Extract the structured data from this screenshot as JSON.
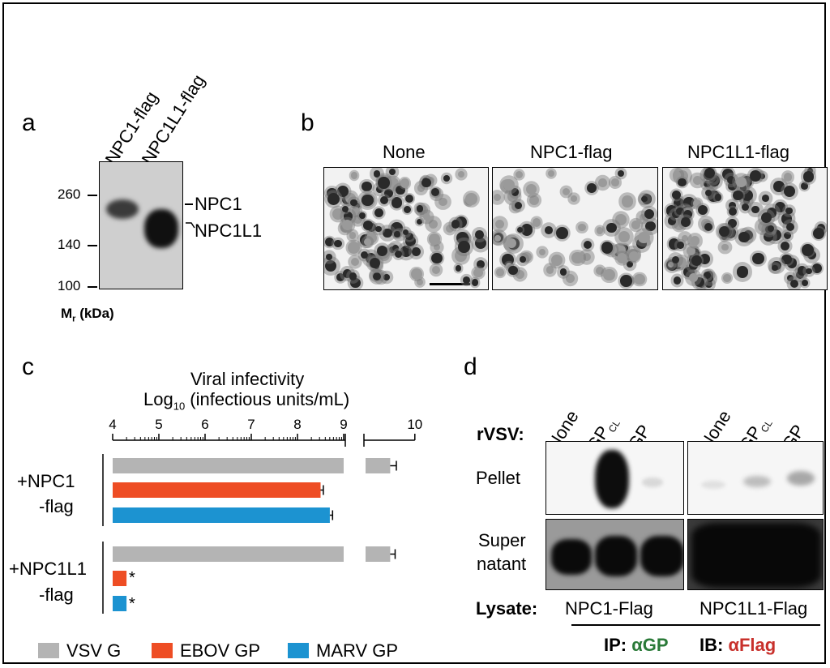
{
  "colors": {
    "vsv": "#b4b4b4",
    "ebov": "#ee4d24",
    "marv": "#1c93d1",
    "gp_green": "#2a7a38",
    "flag_red": "#c8302b"
  },
  "panel_a": {
    "label": "a",
    "lanes": [
      "NPC1-flag",
      "NPC1L1-flag"
    ],
    "markers": [
      "260",
      "140",
      "100"
    ],
    "band_labels": [
      "NPC1",
      "NPC1L1"
    ],
    "mr": "M",
    "mr_sub": "r",
    "mr_unit": "(kDa)"
  },
  "panel_b": {
    "label": "b",
    "conditions": [
      "None",
      "NPC1-flag",
      "NPC1L1-flag"
    ]
  },
  "panel_c": {
    "label": "c",
    "title_line1": "Viral infectivity",
    "title_log": "Log",
    "title_sub": "10",
    "title_units": " (infectious units/mL)",
    "group1": [
      "+NPC1",
      "-flag"
    ],
    "group2": [
      "+NPC1L1",
      "-flag"
    ],
    "asterisk": "*",
    "legend": [
      "VSV G",
      "EBOV GP",
      "MARV GP"
    ]
  },
  "chart_data": {
    "type": "bar",
    "orientation": "horizontal",
    "axis": {
      "ticks": [
        4,
        5,
        6,
        7,
        8,
        9,
        10
      ],
      "range": [
        4,
        10
      ],
      "scale": "log10 values, axis break between 9 and 9.2"
    },
    "groups": [
      "+NPC1 -flag",
      "+NPC1L1 -flag"
    ],
    "series": [
      {
        "name": "VSV G",
        "values": [
          9.6,
          9.6
        ],
        "errors": [
          0.1,
          0.08
        ]
      },
      {
        "name": "EBOV GP",
        "values": [
          8.5,
          4.3
        ],
        "errors": [
          0.06,
          0
        ]
      },
      {
        "name": "MARV GP",
        "values": [
          8.7,
          4.3
        ],
        "errors": [
          0.06,
          0
        ]
      }
    ]
  },
  "panel_d": {
    "label": "d",
    "rvsv": "rVSV:",
    "lanes1": [
      "None",
      "GP",
      "GP"
    ],
    "lanes2": [
      "None",
      "GP",
      "GP"
    ],
    "cl_sub": "CL",
    "rows": [
      "Pellet",
      "Super",
      "natant"
    ],
    "lysate": "Lysate:",
    "lysate_values": [
      "NPC1-Flag",
      "NPC1L1-Flag"
    ],
    "ip_label": "IP: ",
    "ip_value": "αGP",
    "ib_label": "IB: ",
    "ib_value": "αFlag"
  }
}
